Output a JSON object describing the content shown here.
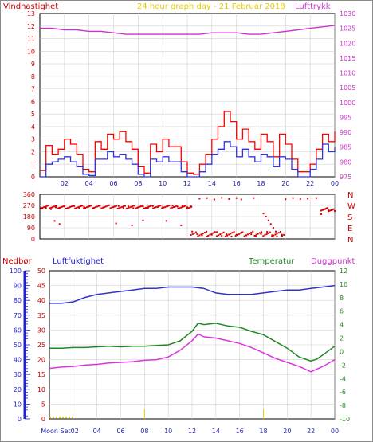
{
  "chart_data": [
    {
      "type": "line",
      "name": "wind-pressure",
      "header_left": "Vindhastighet",
      "title": "24 hour graph day - 21 Februar 2018",
      "header_right": "Lufttrykk",
      "x_ticks": [
        "02",
        "04",
        "06",
        "08",
        "10",
        "12",
        "14",
        "16",
        "18",
        "20",
        "22",
        "00"
      ],
      "y_left": {
        "min": 0,
        "max": 13,
        "ticks": [
          "0",
          "1",
          "2",
          "3",
          "4",
          "5",
          "6",
          "7",
          "8",
          "9",
          "10",
          "11",
          "12",
          "13"
        ]
      },
      "y_right": {
        "min": 975,
        "max": 1030,
        "ticks": [
          "975",
          "980",
          "985",
          "990",
          "995",
          "1000",
          "1005",
          "1010",
          "1015",
          "1020",
          "1025",
          "1030"
        ]
      },
      "series": [
        {
          "color": "#cc33cc",
          "axis": "right",
          "x": [
            0,
            1,
            2,
            3,
            4,
            5,
            6,
            7,
            8,
            9,
            10,
            11,
            12,
            13,
            14,
            15,
            16,
            17,
            18,
            19,
            20,
            21,
            22,
            23,
            24
          ],
          "values": [
            1025,
            1025,
            1024.5,
            1024.5,
            1024,
            1024,
            1023.5,
            1023,
            1023,
            1023,
            1023,
            1023,
            1023,
            1023,
            1023.5,
            1023.5,
            1023.5,
            1023,
            1023,
            1023.5,
            1024,
            1024.5,
            1025,
            1025.5,
            1026
          ]
        },
        {
          "color": "#ff0000",
          "axis": "left",
          "x": [
            0,
            0.5,
            1,
            1.5,
            2,
            2.5,
            3,
            3.5,
            4,
            4.5,
            5,
            5.5,
            6,
            6.5,
            7,
            7.5,
            8,
            8.5,
            9,
            9.5,
            10,
            10.5,
            11,
            11.5,
            12,
            12.5,
            13,
            13.5,
            14,
            14.5,
            15,
            15.5,
            16,
            16.5,
            17,
            17.5,
            18,
            18.5,
            19,
            19.5,
            20,
            20.5,
            21,
            21.5,
            22,
            22.5,
            23,
            23.5,
            24
          ],
          "values": [
            0.5,
            2.5,
            1.8,
            2.2,
            3.0,
            2.6,
            1.8,
            0.6,
            0.4,
            2.8,
            2.2,
            3.4,
            3.0,
            3.6,
            2.8,
            2.2,
            0.8,
            0.3,
            2.6,
            2.0,
            3.0,
            2.4,
            2.4,
            1.2,
            0.3,
            0.2,
            1.0,
            1.8,
            3.0,
            4.0,
            5.2,
            4.4,
            3.0,
            3.8,
            2.8,
            2.2,
            3.4,
            2.8,
            1.6,
            3.4,
            2.6,
            1.4,
            0.4,
            0.4,
            1.0,
            2.2,
            3.4,
            2.8,
            3.6
          ]
        },
        {
          "color": "#3333dd",
          "axis": "left",
          "x": [
            0,
            0.5,
            1,
            1.5,
            2,
            2.5,
            3,
            3.5,
            4,
            4.5,
            5,
            5.5,
            6,
            6.5,
            7,
            7.5,
            8,
            8.5,
            9,
            9.5,
            10,
            10.5,
            11,
            11.5,
            12,
            12.5,
            13,
            13.5,
            14,
            14.5,
            15,
            15.5,
            16,
            16.5,
            17,
            17.5,
            18,
            18.5,
            19,
            19.5,
            20,
            20.5,
            21,
            21.5,
            22,
            22.5,
            23,
            23.5,
            24
          ],
          "values": [
            0,
            1.0,
            1.2,
            1.4,
            1.6,
            1.2,
            0.8,
            0.2,
            0.1,
            1.4,
            1.4,
            2.0,
            1.6,
            1.8,
            1.4,
            1.0,
            0.2,
            0.0,
            1.4,
            1.2,
            1.6,
            1.2,
            1.2,
            0.4,
            0.0,
            0.0,
            0.4,
            1.0,
            1.8,
            2.2,
            2.8,
            2.4,
            1.6,
            2.2,
            1.6,
            1.2,
            1.8,
            1.6,
            0.8,
            1.6,
            1.4,
            0.6,
            0.0,
            0.0,
            0.6,
            1.4,
            2.6,
            2.0,
            2.4
          ]
        }
      ]
    },
    {
      "type": "scatter",
      "name": "wind-direction",
      "y_ticks_left": [
        "0",
        "90",
        "180",
        "270",
        "360"
      ],
      "y_ticks_right": [
        "N",
        "E",
        "S",
        "W",
        "N"
      ],
      "y_range": [
        0,
        360
      ],
      "point_color": "#dd0000",
      "points": [
        [
          0.2,
          245
        ],
        [
          0.5,
          250
        ],
        [
          0.9,
          240
        ],
        [
          1.3,
          255
        ],
        [
          1.6,
          250
        ],
        [
          2.0,
          262
        ],
        [
          2.4,
          255
        ],
        [
          2.8,
          265
        ],
        [
          3.2,
          248
        ],
        [
          3.6,
          258
        ],
        [
          4.0,
          262
        ],
        [
          4.4,
          250
        ],
        [
          4.8,
          268
        ],
        [
          5.2,
          255
        ],
        [
          5.6,
          272
        ],
        [
          6.0,
          258
        ],
        [
          6.4,
          265
        ],
        [
          6.8,
          250
        ],
        [
          7.2,
          262
        ],
        [
          7.6,
          248
        ],
        [
          8.0,
          255
        ],
        [
          8.4,
          262
        ],
        [
          8.8,
          250
        ],
        [
          9.2,
          265
        ],
        [
          9.6,
          258
        ],
        [
          10.0,
          255
        ],
        [
          10.4,
          262
        ],
        [
          10.8,
          270
        ],
        [
          11.2,
          260
        ],
        [
          11.6,
          268
        ],
        [
          12.0,
          255
        ],
        [
          12.3,
          265
        ],
        [
          1.2,
          145
        ],
        [
          1.6,
          120
        ],
        [
          6.2,
          125
        ],
        [
          7.5,
          110
        ],
        [
          8.4,
          150
        ],
        [
          10.3,
          145
        ],
        [
          11.5,
          110
        ],
        [
          12.4,
          60
        ],
        [
          12.8,
          40
        ],
        [
          13.2,
          30
        ],
        [
          13.6,
          20
        ],
        [
          14.0,
          35
        ],
        [
          14.4,
          55
        ],
        [
          14.8,
          25
        ],
        [
          15.2,
          40
        ],
        [
          15.6,
          20
        ],
        [
          16.0,
          35
        ],
        [
          16.4,
          50
        ],
        [
          16.8,
          28
        ],
        [
          17.2,
          38
        ],
        [
          17.6,
          22
        ],
        [
          18.0,
          40
        ],
        [
          18.5,
          58
        ],
        [
          18.9,
          30
        ],
        [
          19.3,
          20
        ],
        [
          19.7,
          35
        ],
        [
          13.0,
          325
        ],
        [
          13.6,
          330
        ],
        [
          14.2,
          318
        ],
        [
          14.8,
          332
        ],
        [
          15.4,
          322
        ],
        [
          16.0,
          330
        ],
        [
          16.4,
          318
        ],
        [
          17.4,
          330
        ],
        [
          18.2,
          205
        ],
        [
          18.4,
          180
        ],
        [
          18.6,
          150
        ],
        [
          18.8,
          120
        ],
        [
          19.0,
          90
        ],
        [
          19.2,
          60
        ],
        [
          20.0,
          320
        ],
        [
          20.6,
          330
        ],
        [
          21.2,
          322
        ],
        [
          21.8,
          325
        ],
        [
          22.5,
          330
        ],
        [
          22.9,
          200
        ],
        [
          23.2,
          240
        ],
        [
          23.5,
          230
        ],
        [
          23.8,
          235
        ],
        [
          24.0,
          225
        ]
      ]
    },
    {
      "type": "line",
      "name": "temp-humidity",
      "header_left": "Nedbør",
      "header_humidity": "Luftfuktighet",
      "header_temp": "Temperatur",
      "header_dew": "Duggpunkt",
      "x_ticks": [
        "Moon Set02",
        "04",
        "06",
        "08",
        "10",
        "12",
        "14",
        "16",
        "18",
        "20",
        "22",
        "00"
      ],
      "y_precip_ticks": [
        "0",
        "5",
        "10",
        "15",
        "20",
        "25",
        "30",
        "35",
        "40",
        "45",
        "50"
      ],
      "y_humidity_ticks": [
        "0",
        "10",
        "20",
        "30",
        "40",
        "50",
        "60",
        "70",
        "80",
        "90",
        "100"
      ],
      "y_temp_ticks": [
        "-10",
        "-8",
        "-6",
        "-4",
        "-2",
        "0",
        "2",
        "4",
        "6",
        "8",
        "10",
        "12"
      ],
      "y_temp_range": [
        -10,
        12
      ],
      "series": [
        {
          "color": "#3333cc",
          "axis": "humidity",
          "x": [
            0,
            1,
            2,
            3,
            4,
            5,
            6,
            7,
            8,
            9,
            10,
            11,
            12,
            13,
            14,
            15,
            16,
            17,
            18,
            19,
            20,
            21,
            22,
            23,
            24
          ],
          "values": [
            78,
            78,
            79,
            82,
            84,
            85,
            86,
            87,
            88,
            88,
            89,
            89,
            89,
            88,
            85,
            84,
            84,
            84,
            85,
            86,
            87,
            87,
            88,
            89,
            90
          ]
        },
        {
          "color": "#228822",
          "axis": "temp",
          "x": [
            0,
            1,
            2,
            3,
            4,
            5,
            6,
            7,
            8,
            9,
            10,
            11,
            12,
            12.5,
            13,
            14,
            15,
            16,
            17,
            18,
            19,
            20,
            21,
            22,
            22.5,
            23,
            24
          ],
          "values": [
            0.5,
            0.5,
            0.6,
            0.6,
            0.7,
            0.8,
            0.7,
            0.8,
            0.8,
            0.9,
            1.0,
            1.6,
            3.0,
            4.2,
            4.0,
            4.2,
            3.8,
            3.6,
            3.0,
            2.5,
            1.5,
            0.5,
            -0.8,
            -1.4,
            -1.1,
            -0.5,
            0.8
          ]
        },
        {
          "color": "#dd33dd",
          "axis": "temp",
          "x": [
            0,
            1,
            2,
            3,
            4,
            5,
            6,
            7,
            8,
            9,
            10,
            11,
            12,
            12.5,
            13,
            14,
            15,
            16,
            17,
            18,
            19,
            20,
            21,
            22,
            22.5,
            23,
            24
          ],
          "values": [
            -2.5,
            -2.3,
            -2.2,
            -2.0,
            -1.9,
            -1.7,
            -1.6,
            -1.5,
            -1.3,
            -1.2,
            -0.8,
            0.2,
            1.6,
            2.6,
            2.2,
            2.0,
            1.6,
            1.2,
            0.6,
            -0.2,
            -1.0,
            -1.6,
            -2.2,
            -3.0,
            -2.6,
            -2.2,
            -1.2
          ]
        }
      ]
    }
  ]
}
